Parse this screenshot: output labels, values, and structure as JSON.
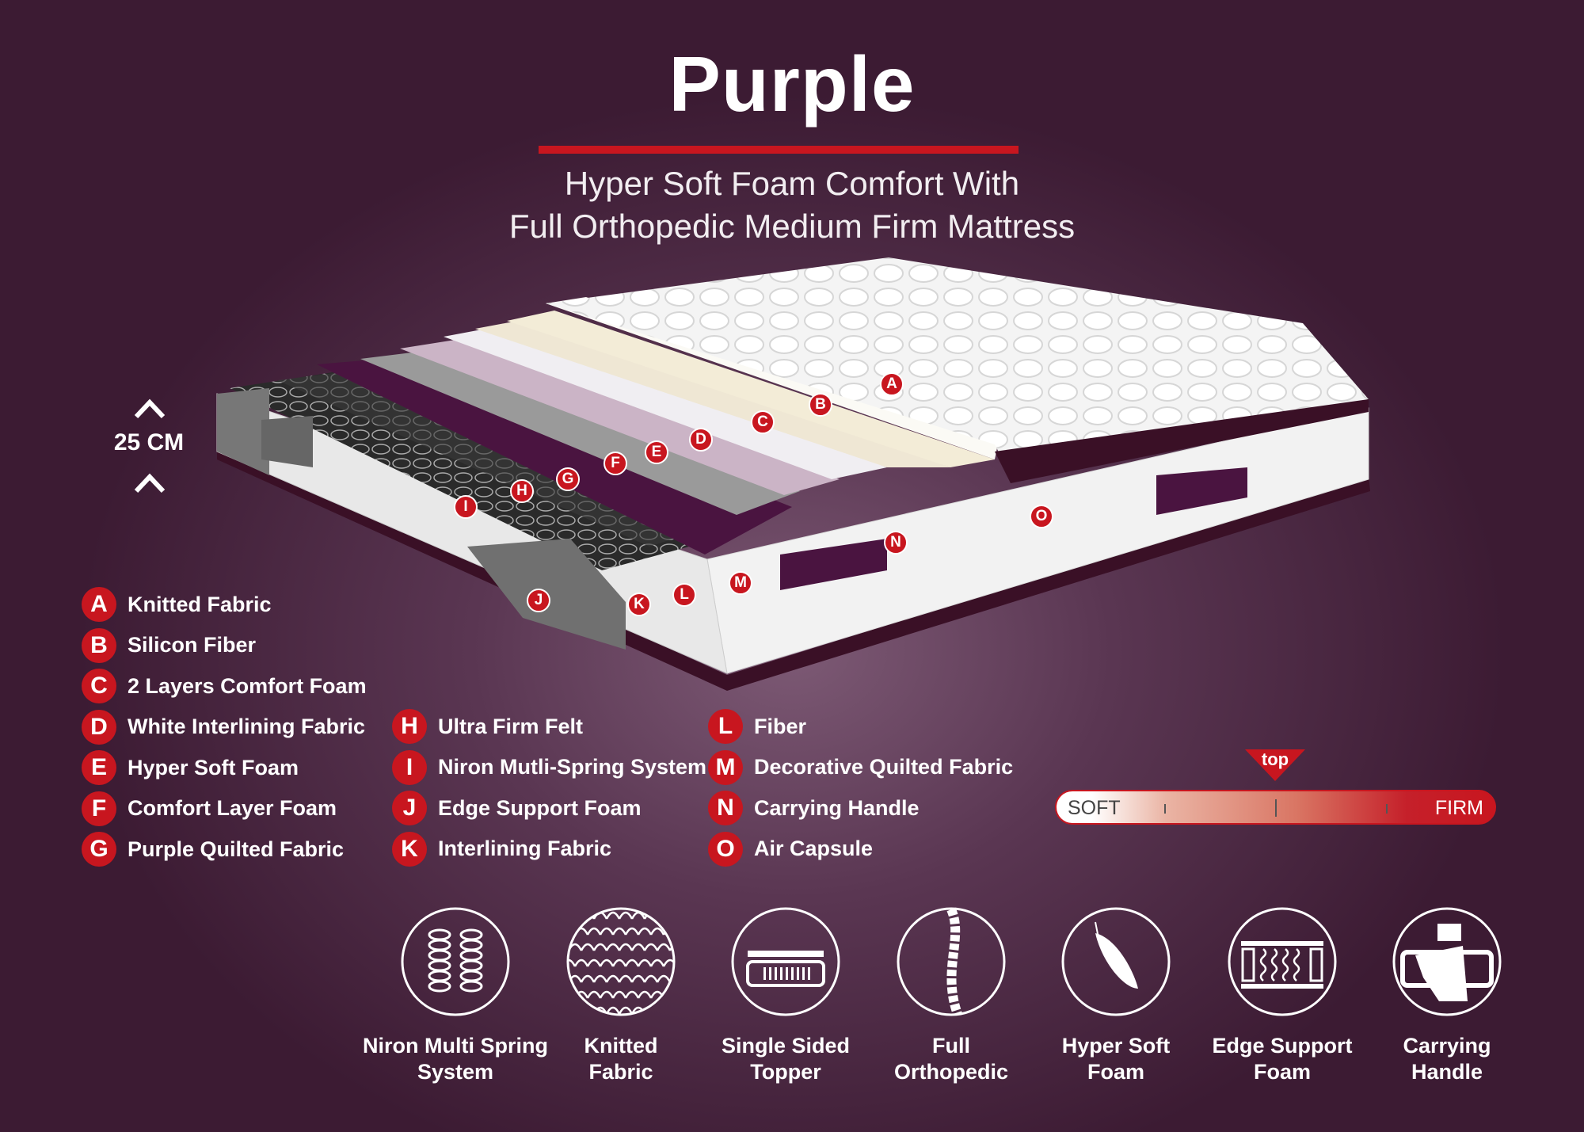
{
  "header": {
    "title": "Purple",
    "subtitle_line1": "Hyper Soft Foam Comfort With",
    "subtitle_line2": "Full Orthopedic Medium Firm Mattress"
  },
  "height_label": "25 CM",
  "markers": [
    "A",
    "B",
    "C",
    "D",
    "E",
    "F",
    "G",
    "H",
    "I",
    "J",
    "K",
    "L",
    "M",
    "N",
    "O"
  ],
  "legend": [
    {
      "letter": "A",
      "label": "Knitted Fabric"
    },
    {
      "letter": "B",
      "label": "Silicon Fiber"
    },
    {
      "letter": "C",
      "label": "2 Layers Comfort Foam"
    },
    {
      "letter": "D",
      "label": "White Interlining Fabric"
    },
    {
      "letter": "E",
      "label": "Hyper Soft Foam"
    },
    {
      "letter": "F",
      "label": "Comfort Layer Foam"
    },
    {
      "letter": "G",
      "label": "Purple Quilted Fabric"
    },
    {
      "letter": "H",
      "label": "Ultra Firm Felt"
    },
    {
      "letter": "I",
      "label": "Niron Mutli-Spring System"
    },
    {
      "letter": "J",
      "label": "Edge Support Foam"
    },
    {
      "letter": "K",
      "label": "Interlining Fabric"
    },
    {
      "letter": "L",
      "label": "Fiber"
    },
    {
      "letter": "M",
      "label": "Decorative Quilted Fabric"
    },
    {
      "letter": "N",
      "label": "Carrying Handle"
    },
    {
      "letter": "O",
      "label": "Air Capsule"
    }
  ],
  "firmness": {
    "min_label": "SOFT",
    "max_label": "FIRM",
    "marker_label": "top",
    "level_percent": 50
  },
  "features": [
    {
      "icon": "spring-icon",
      "line1": "Niron Multi Spring",
      "line2": "System"
    },
    {
      "icon": "knitted-fabric-icon",
      "line1": "Knitted",
      "line2": "Fabric"
    },
    {
      "icon": "topper-icon",
      "line1": "Single Sided",
      "line2": "Topper"
    },
    {
      "icon": "spine-icon",
      "line1": "Full",
      "line2": "Orthopedic"
    },
    {
      "icon": "feather-icon",
      "line1": "Hyper Soft",
      "line2": "Foam"
    },
    {
      "icon": "edge-support-icon",
      "line1": "Edge Support",
      "line2": "Foam"
    },
    {
      "icon": "handle-icon",
      "line1": "Carrying",
      "line2": "Handle"
    }
  ],
  "colors": {
    "accent": "#c8161f",
    "background": "#4a2540"
  }
}
